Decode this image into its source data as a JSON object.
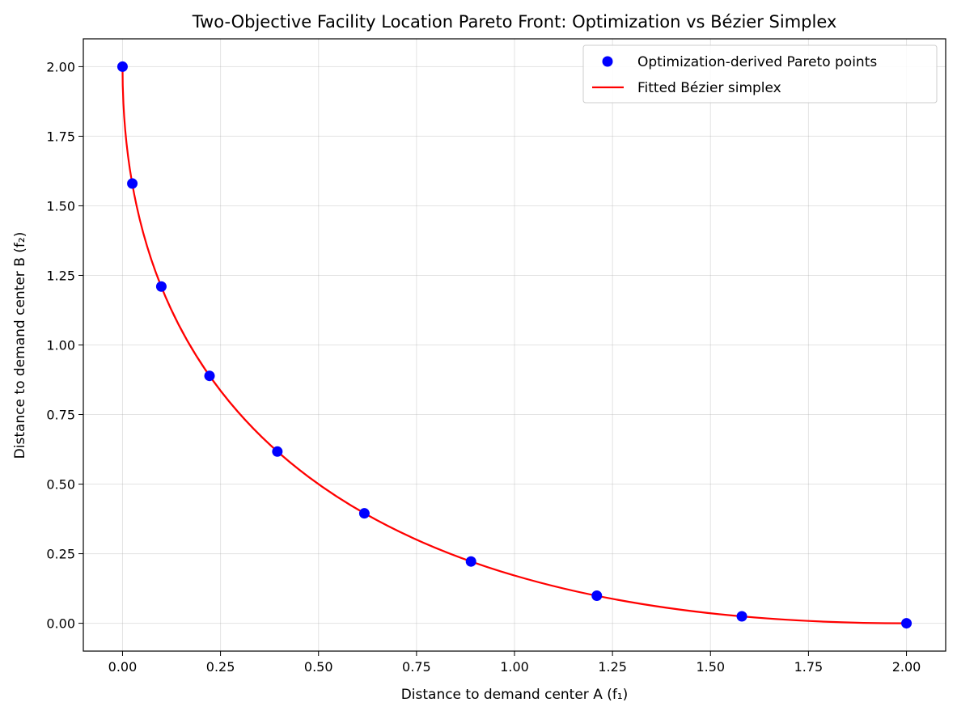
{
  "chart_data": {
    "type": "scatter",
    "title": "Two-Objective Facility Location Pareto Front: Optimization vs Bézier Simplex",
    "xlabel": "Distance to demand center A (f₁)",
    "ylabel": "Distance to demand center B (f₂)",
    "xlim": [
      -0.1,
      2.1
    ],
    "ylim": [
      -0.1,
      2.1
    ],
    "xticks": [
      0.0,
      0.25,
      0.5,
      0.75,
      1.0,
      1.25,
      1.5,
      1.75,
      2.0
    ],
    "xtick_labels": [
      "0.00",
      "0.25",
      "0.50",
      "0.75",
      "1.00",
      "1.25",
      "1.50",
      "1.75",
      "2.00"
    ],
    "yticks": [
      0.0,
      0.25,
      0.5,
      0.75,
      1.0,
      1.25,
      1.5,
      1.75,
      2.0
    ],
    "ytick_labels": [
      "0.00",
      "0.25",
      "0.50",
      "0.75",
      "1.00",
      "1.25",
      "1.50",
      "1.75",
      "2.00"
    ],
    "grid": true,
    "legend_position": "top-right",
    "series": [
      {
        "name": "Optimization-derived Pareto points",
        "type": "scatter",
        "color": "#0000ff",
        "points": [
          {
            "x": 0.0,
            "y": 2.0
          },
          {
            "x": 0.025,
            "y": 1.58
          },
          {
            "x": 0.099,
            "y": 1.21
          },
          {
            "x": 0.222,
            "y": 0.889
          },
          {
            "x": 0.395,
            "y": 0.617
          },
          {
            "x": 0.617,
            "y": 0.395
          },
          {
            "x": 0.889,
            "y": 0.222
          },
          {
            "x": 1.21,
            "y": 0.099
          },
          {
            "x": 1.58,
            "y": 0.025
          },
          {
            "x": 2.0,
            "y": 0.0
          }
        ]
      },
      {
        "name": "Fitted Bézier simplex",
        "type": "line",
        "color": "#ff0000",
        "control_points": [
          {
            "x": 0.0,
            "y": 2.0
          },
          {
            "x": 0.0,
            "y": 0.0
          },
          {
            "x": 2.0,
            "y": 0.0
          }
        ]
      }
    ]
  }
}
